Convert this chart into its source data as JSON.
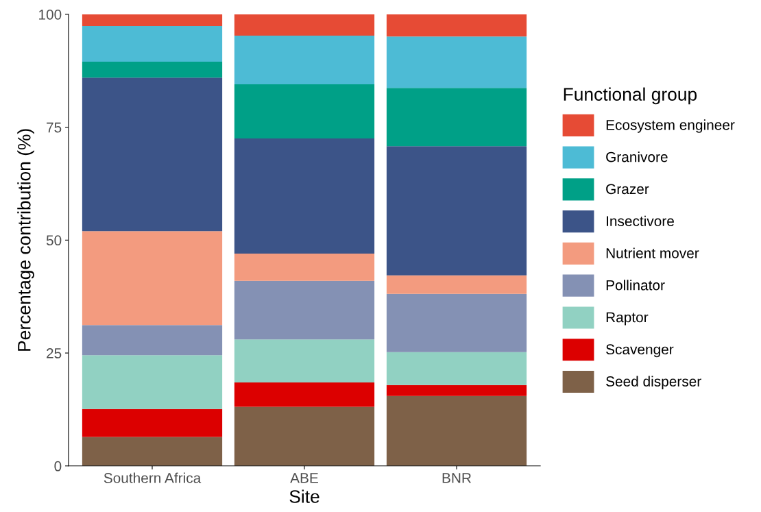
{
  "chart_data": {
    "type": "bar",
    "stacked": true,
    "xlabel": "Site",
    "ylabel": "Percentage contribution (%)",
    "legend_title": "Functional group",
    "legend": "right",
    "grid": false,
    "categories": [
      "Southern Africa",
      "ABE",
      "BNR"
    ],
    "ylim": [
      0,
      100
    ],
    "yticks": [
      0,
      25,
      50,
      75,
      100
    ],
    "series": [
      {
        "name": "Seed disperser",
        "color": "#7e6148",
        "values": [
          6.4,
          13.1,
          15.5
        ]
      },
      {
        "name": "Scavenger",
        "color": "#dc0000",
        "values": [
          6.2,
          5.4,
          2.4
        ]
      },
      {
        "name": "Raptor",
        "color": "#91d1c2",
        "values": [
          11.9,
          9.5,
          7.3
        ]
      },
      {
        "name": "Pollinator",
        "color": "#8491b4",
        "values": [
          6.7,
          13.0,
          12.9
        ]
      },
      {
        "name": "Nutrient mover",
        "color": "#f39b7f",
        "values": [
          20.8,
          6.0,
          4.1
        ]
      },
      {
        "name": "Insectivore",
        "color": "#3c5488",
        "values": [
          34.0,
          25.5,
          28.6
        ]
      },
      {
        "name": "Grazer",
        "color": "#00a087",
        "values": [
          3.5,
          12.0,
          12.9
        ]
      },
      {
        "name": "Granivore",
        "color": "#4dbbd5",
        "values": [
          7.9,
          10.8,
          11.4
        ]
      },
      {
        "name": "Ecosystem engineer",
        "color": "#e64b35",
        "values": [
          2.6,
          4.7,
          4.9
        ]
      }
    ]
  }
}
